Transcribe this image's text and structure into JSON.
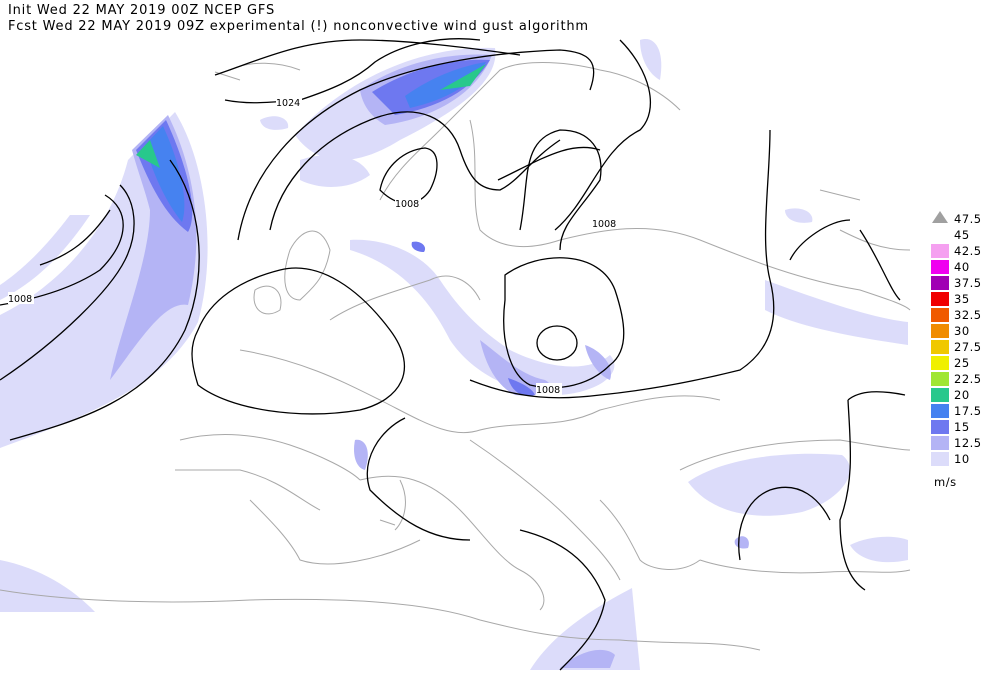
{
  "header": {
    "line1": "Init  Wed 22 MAY 2019 00Z  NCEP GFS",
    "line2": "Fcst Wed 22 MAY 2019 09Z  experimental (!) nonconvective wind gust algorithm"
  },
  "isobar_labels": [
    "1024",
    "1008",
    "1008",
    "1008",
    "1008"
  ],
  "legend": {
    "unit": "m/s",
    "items": [
      {
        "label": "47.5",
        "color": "#a0a0a0"
      },
      {
        "label": "45",
        "color": "#ffffff"
      },
      {
        "label": "42.5",
        "color": "#f5a0f0"
      },
      {
        "label": "40",
        "color": "#f000f0"
      },
      {
        "label": "37.5",
        "color": "#a000b4"
      },
      {
        "label": "35",
        "color": "#f00000"
      },
      {
        "label": "32.5",
        "color": "#f05a00"
      },
      {
        "label": "30",
        "color": "#f08c00"
      },
      {
        "label": "27.5",
        "color": "#f0c800"
      },
      {
        "label": "25",
        "color": "#f0f000"
      },
      {
        "label": "22.5",
        "color": "#a0e632"
      },
      {
        "label": "20",
        "color": "#28c88c"
      },
      {
        "label": "17.5",
        "color": "#4682f0"
      },
      {
        "label": "15",
        "color": "#6e78f0"
      },
      {
        "label": "12.5",
        "color": "#b4b4f5"
      },
      {
        "label": "10",
        "color": "#dcdcfa"
      }
    ]
  }
}
